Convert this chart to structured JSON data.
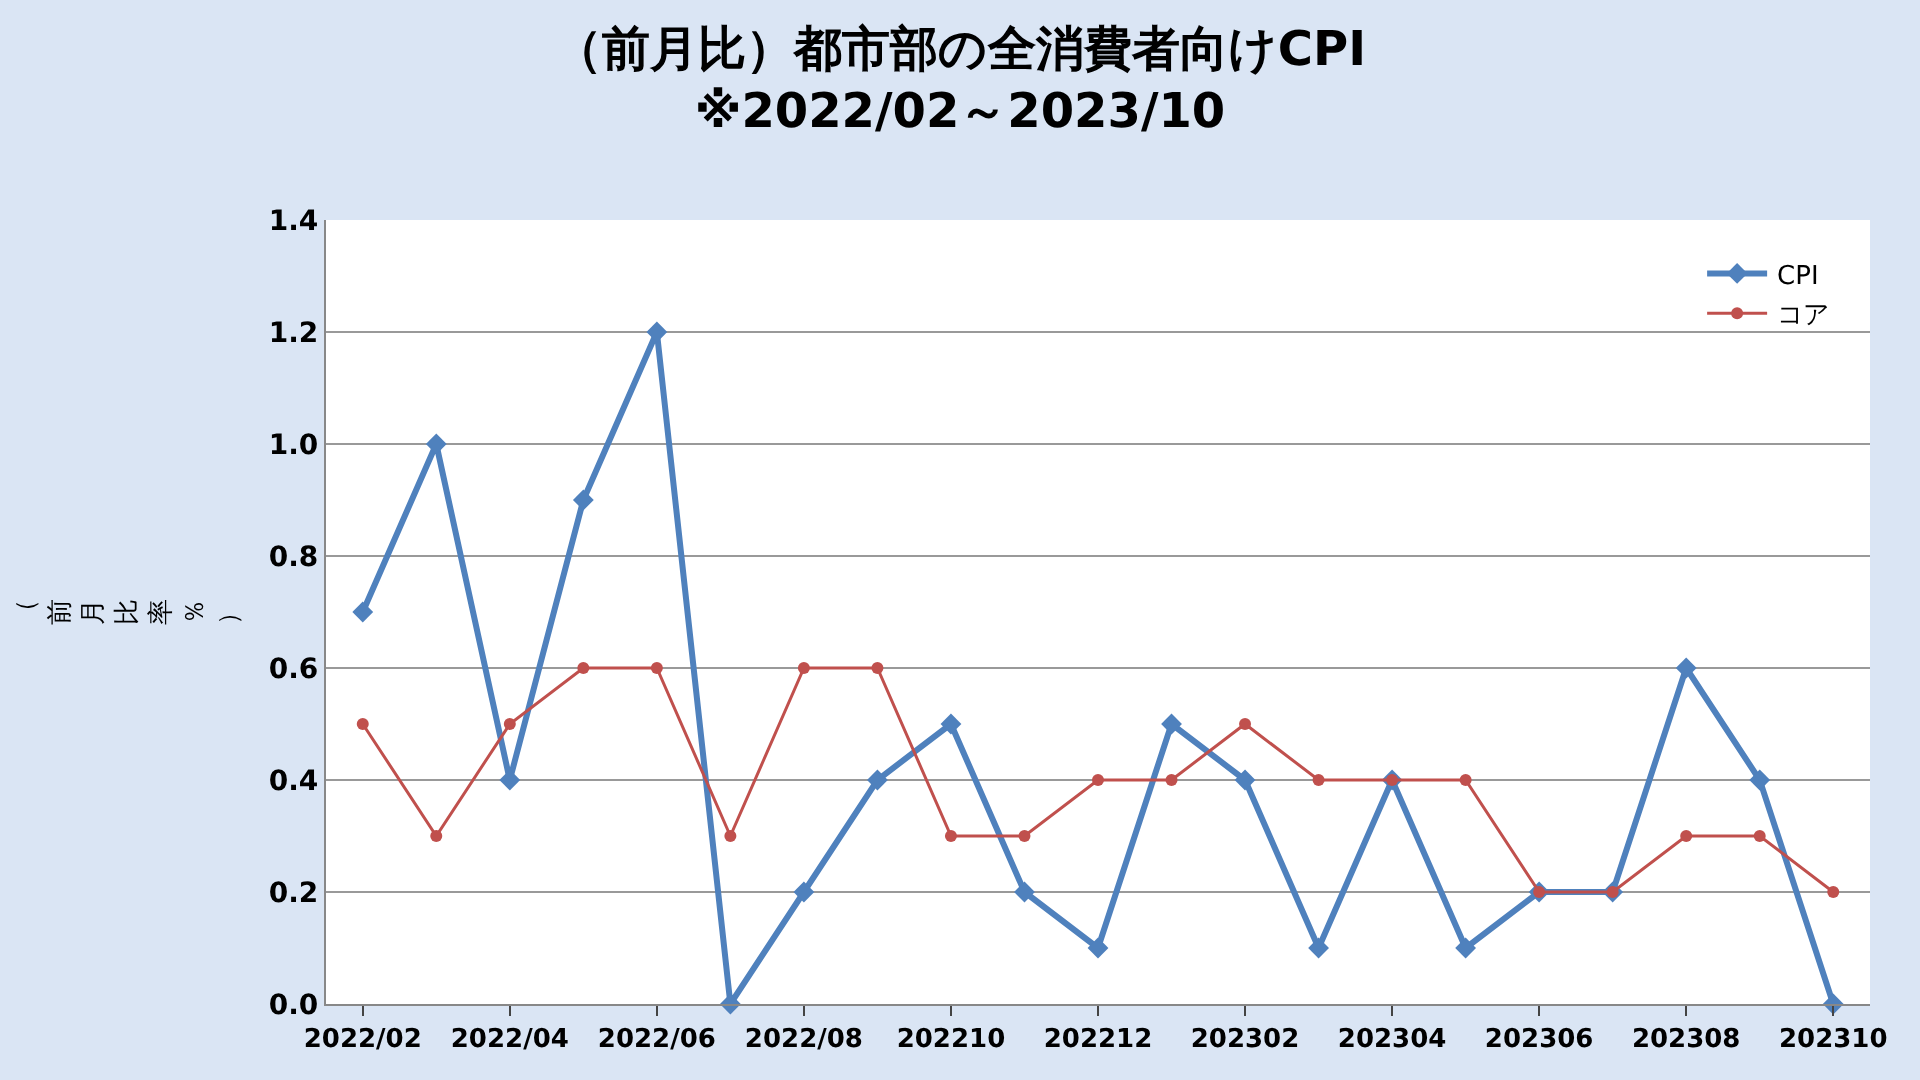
{
  "chart_data": {
    "type": "line",
    "title": "（前月比）都市部の全消費者向けCPI\n※2022/02～2023/10",
    "ylabel": "（前月比率％）",
    "categories": [
      "2022/02",
      null,
      "2022/04",
      null,
      "2022/06",
      null,
      "2022/08",
      null,
      "202210",
      null,
      "202212",
      null,
      "202302",
      null,
      "202304",
      null,
      "202306",
      null,
      "202308",
      null,
      "202310"
    ],
    "series": [
      {
        "name": "CPI",
        "color": "#4f81bd",
        "marker": "diamond",
        "values": [
          0.7,
          1.0,
          0.4,
          0.9,
          1.2,
          0.0,
          0.2,
          0.4,
          0.5,
          0.2,
          0.1,
          0.5,
          0.4,
          0.1,
          0.4,
          0.1,
          0.2,
          0.2,
          0.6,
          0.4,
          0.0
        ]
      },
      {
        "name": "コア",
        "color": "#c0504d",
        "marker": "circle",
        "values": [
          0.5,
          0.3,
          0.5,
          0.6,
          0.6,
          0.3,
          0.6,
          0.6,
          0.3,
          0.3,
          0.4,
          0.4,
          0.5,
          0.4,
          0.4,
          0.4,
          0.2,
          0.2,
          0.3,
          0.3,
          0.2
        ]
      }
    ],
    "ylim": [
      0,
      1.4
    ],
    "yticks": [
      {
        "value": 0,
        "label": "0.0"
      },
      {
        "value": 0.2,
        "label": "0.2"
      },
      {
        "value": 0.4,
        "label": "0.4"
      },
      {
        "value": 0.6,
        "label": "0.6"
      },
      {
        "value": 0.8,
        "label": "0.8"
      },
      {
        "value": 1.0,
        "label": "1.0"
      },
      {
        "value": 1.2,
        "label": "1.2"
      },
      {
        "value": 1.4,
        "label": "1.4"
      }
    ],
    "grid": "y",
    "legend": "top right",
    "line_style": "solid"
  }
}
